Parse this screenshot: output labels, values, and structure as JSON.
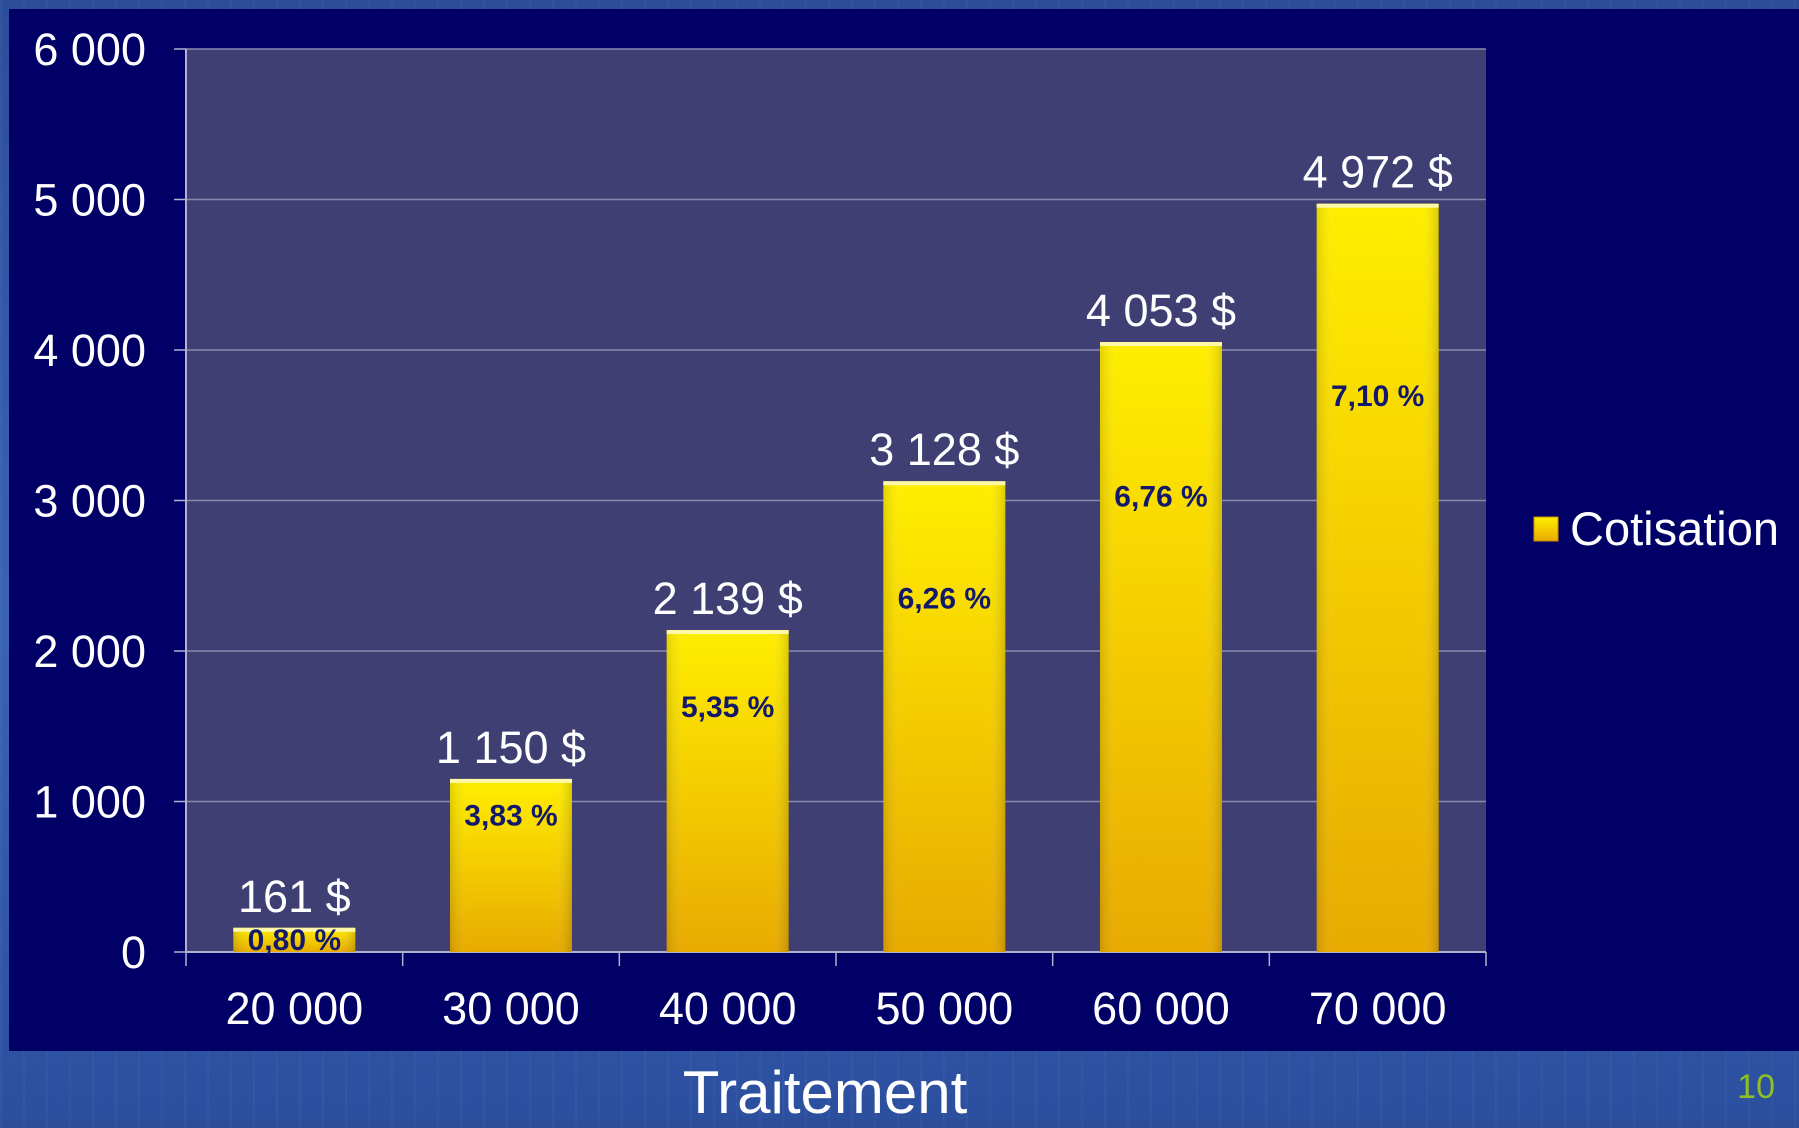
{
  "slide": {
    "page_number": "10"
  },
  "colors": {
    "panel_background": "#000066",
    "plot_background": "#3f3f73",
    "bar_top": "#ffee00",
    "bar_bottom": "#e8aa00",
    "page_number": "#8fbf26"
  },
  "chart_data": {
    "type": "bar",
    "categories": [
      "20 000",
      "30 000",
      "40 000",
      "50 000",
      "60 000",
      "70 000"
    ],
    "series": [
      {
        "name": "Cotisation",
        "values": [
          161,
          1150,
          2139,
          3128,
          4053,
          4972
        ],
        "value_labels": [
          "161 $",
          "1 150 $",
          "2 139 $",
          "3 128 $",
          "4 053 $",
          "4 972 $"
        ],
        "percent_labels": [
          "0,80 %",
          "3,83 %",
          "5,35 %",
          "6,26 %",
          "6,76 %",
          "7,10 %"
        ]
      }
    ],
    "xlabel": "Traitement",
    "ylabel": "",
    "ylim": [
      0,
      6000
    ],
    "yticks": [
      0,
      1000,
      2000,
      3000,
      4000,
      5000,
      6000
    ],
    "ytick_labels": [
      "0",
      "1 000",
      "2 000",
      "3 000",
      "4 000",
      "5 000",
      "6 000"
    ],
    "grid": true,
    "legend": {
      "position": "right",
      "entries": [
        "Cotisation"
      ]
    }
  }
}
